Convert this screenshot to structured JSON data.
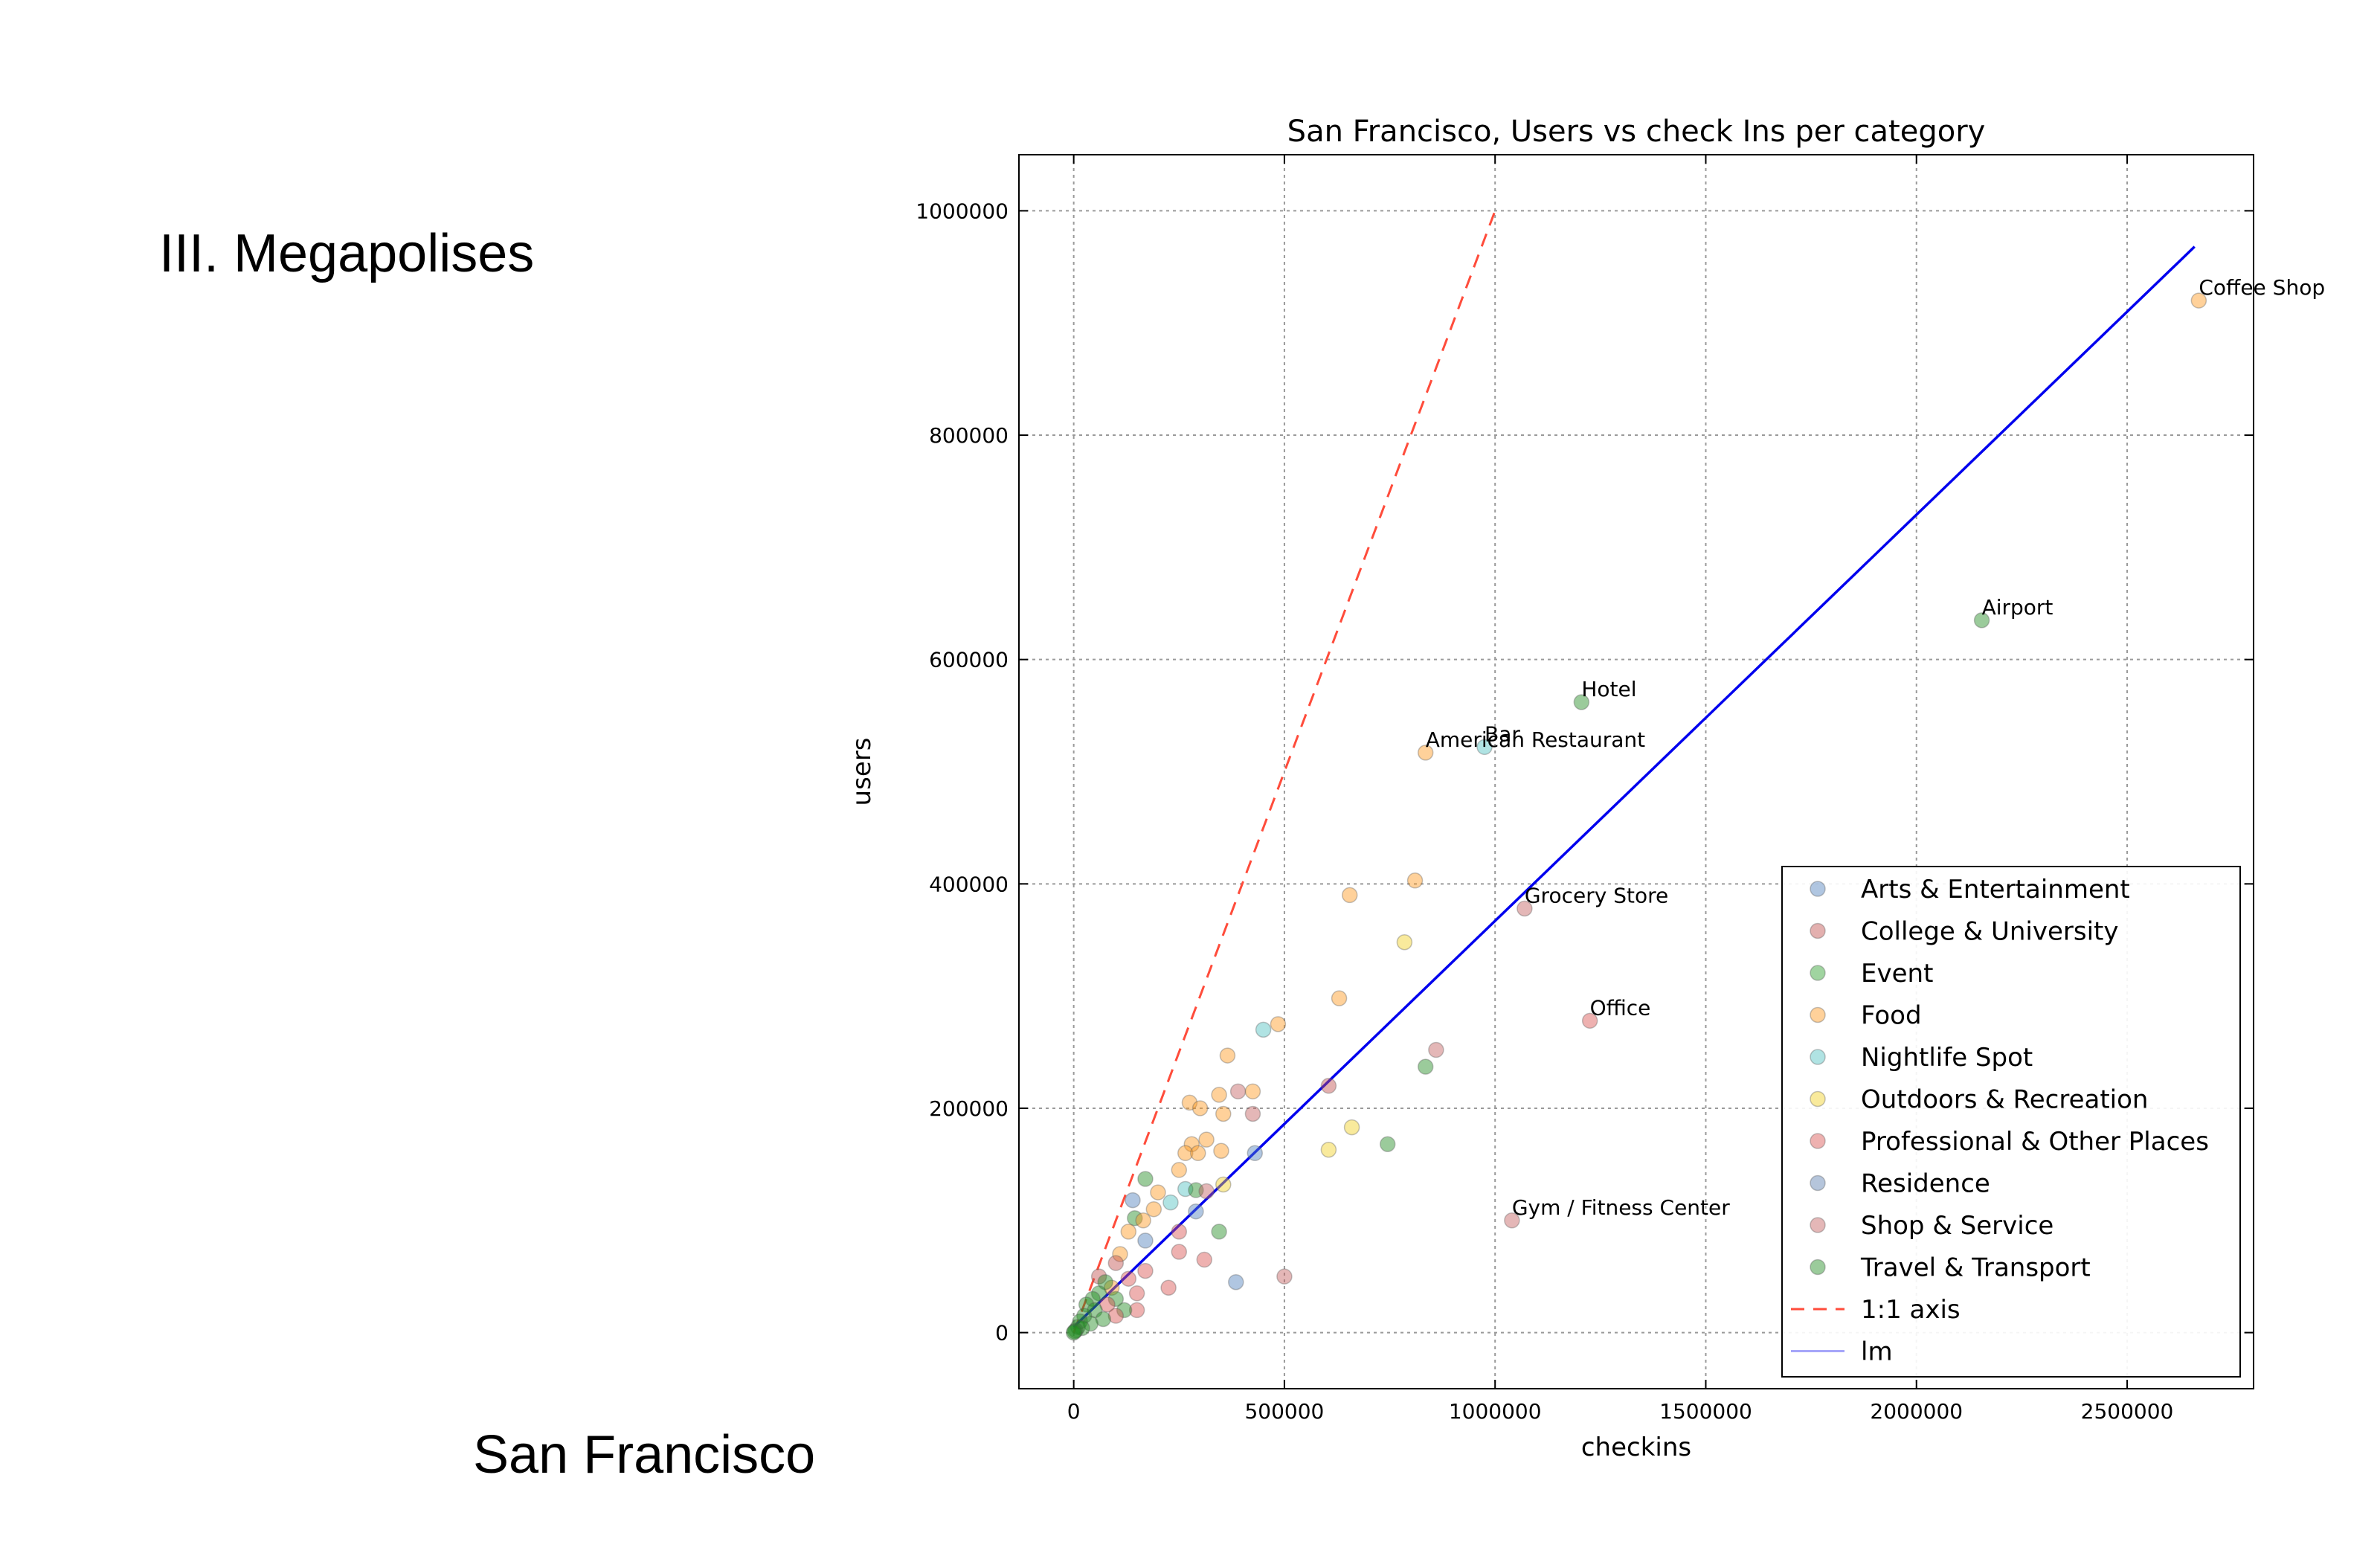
{
  "slide": {
    "heading": "III. Megapolises",
    "caption": "San Francisco"
  },
  "chart_data": {
    "type": "scatter",
    "title": "San Francisco, Users vs check Ins per category",
    "xlabel": "checkins",
    "ylabel": "users",
    "xlim": [
      -130000,
      2800000
    ],
    "ylim": [
      -50000,
      1050000
    ],
    "xticks": [
      0,
      500000,
      1000000,
      1500000,
      2000000,
      2500000
    ],
    "yticks": [
      0,
      200000,
      400000,
      600000,
      800000,
      1000000
    ],
    "grid": true,
    "legend_position": "lower-right",
    "categories": [
      {
        "name": "Arts & Entertainment",
        "color": "#4f81bd"
      },
      {
        "name": "College & University",
        "color": "#c0504d"
      },
      {
        "name": "Event",
        "color": "#2ca02c"
      },
      {
        "name": "Food",
        "color": "#ff9a1f"
      },
      {
        "name": "Nightlife Spot",
        "color": "#4fc1c1"
      },
      {
        "name": "Outdoors & Recreation",
        "color": "#f2d024"
      },
      {
        "name": "Professional & Other Places",
        "color": "#d9534f"
      },
      {
        "name": "Residence",
        "color": "#5a7fb0"
      },
      {
        "name": "Shop & Service",
        "color": "#c46060"
      },
      {
        "name": "Travel & Transport",
        "color": "#228b22"
      }
    ],
    "reference_lines": [
      {
        "name": "1:1 axis",
        "color": "#ff4c3b",
        "style": "dashed",
        "x": [
          0,
          1000000
        ],
        "y": [
          0,
          1000000
        ]
      },
      {
        "name": "lm",
        "color": "#0000ee",
        "style": "solid",
        "x": [
          0,
          2660000
        ],
        "y": [
          5000,
          968000
        ]
      }
    ],
    "annotations": [
      {
        "label": "Coffee Shop",
        "x": 2670000,
        "y": 920000
      },
      {
        "label": "Airport",
        "x": 2155000,
        "y": 635000
      },
      {
        "label": "Hotel",
        "x": 1205000,
        "y": 562000
      },
      {
        "label": "Bar",
        "x": 975000,
        "y": 522000
      },
      {
        "label": "American Restaurant",
        "x": 835000,
        "y": 517000
      },
      {
        "label": "Grocery Store",
        "x": 1070000,
        "y": 378000
      },
      {
        "label": "Office",
        "x": 1225000,
        "y": 278000
      },
      {
        "label": "Gym / Fitness Center",
        "x": 1040000,
        "y": 100000
      }
    ],
    "points": [
      {
        "category": "Food",
        "x": 2670000,
        "y": 920000
      },
      {
        "category": "Travel & Transport",
        "x": 2155000,
        "y": 635000
      },
      {
        "category": "Travel & Transport",
        "x": 1205000,
        "y": 562000
      },
      {
        "category": "Nightlife Spot",
        "x": 975000,
        "y": 522000
      },
      {
        "category": "Food",
        "x": 835000,
        "y": 517000
      },
      {
        "category": "Shop & Service",
        "x": 1070000,
        "y": 378000
      },
      {
        "category": "Professional & Other Places",
        "x": 1225000,
        "y": 278000
      },
      {
        "category": "Shop & Service",
        "x": 1040000,
        "y": 100000
      },
      {
        "category": "Food",
        "x": 810000,
        "y": 403000
      },
      {
        "category": "Food",
        "x": 655000,
        "y": 390000
      },
      {
        "category": "Outdoors & Recreation",
        "x": 785000,
        "y": 348000
      },
      {
        "category": "Food",
        "x": 630000,
        "y": 298000
      },
      {
        "category": "Nightlife Spot",
        "x": 450000,
        "y": 270000
      },
      {
        "category": "Food",
        "x": 485000,
        "y": 275000
      },
      {
        "category": "Shop & Service",
        "x": 860000,
        "y": 252000
      },
      {
        "category": "Travel & Transport",
        "x": 835000,
        "y": 237000
      },
      {
        "category": "Food",
        "x": 365000,
        "y": 247000
      },
      {
        "category": "College & University",
        "x": 605000,
        "y": 220000
      },
      {
        "category": "Shop & Service",
        "x": 390000,
        "y": 215000
      },
      {
        "category": "Food",
        "x": 425000,
        "y": 215000
      },
      {
        "category": "Food",
        "x": 345000,
        "y": 212000
      },
      {
        "category": "Food",
        "x": 275000,
        "y": 205000
      },
      {
        "category": "Shop & Service",
        "x": 425000,
        "y": 195000
      },
      {
        "category": "Outdoors & Recreation",
        "x": 660000,
        "y": 183000
      },
      {
        "category": "Travel & Transport",
        "x": 745000,
        "y": 168000
      },
      {
        "category": "Outdoors & Recreation",
        "x": 605000,
        "y": 163000
      },
      {
        "category": "Arts & Entertainment",
        "x": 430000,
        "y": 160000
      },
      {
        "category": "Food",
        "x": 300000,
        "y": 200000
      },
      {
        "category": "Food",
        "x": 355000,
        "y": 195000
      },
      {
        "category": "Food",
        "x": 315000,
        "y": 172000
      },
      {
        "category": "Food",
        "x": 280000,
        "y": 168000
      },
      {
        "category": "Food",
        "x": 265000,
        "y": 160000
      },
      {
        "category": "Food",
        "x": 350000,
        "y": 162000
      },
      {
        "category": "Food",
        "x": 295000,
        "y": 160000
      },
      {
        "category": "Food",
        "x": 250000,
        "y": 145000
      },
      {
        "category": "Travel & Transport",
        "x": 170000,
        "y": 137000
      },
      {
        "category": "Outdoors & Recreation",
        "x": 355000,
        "y": 132000
      },
      {
        "category": "Nightlife Spot",
        "x": 265000,
        "y": 128000
      },
      {
        "category": "Travel & Transport",
        "x": 290000,
        "y": 127000
      },
      {
        "category": "Shop & Service",
        "x": 315000,
        "y": 126000
      },
      {
        "category": "Food",
        "x": 200000,
        "y": 125000
      },
      {
        "category": "Arts & Entertainment",
        "x": 140000,
        "y": 118000
      },
      {
        "category": "Nightlife Spot",
        "x": 230000,
        "y": 116000
      },
      {
        "category": "Food",
        "x": 190000,
        "y": 110000
      },
      {
        "category": "Arts & Entertainment",
        "x": 290000,
        "y": 108000
      },
      {
        "category": "Travel & Transport",
        "x": 145000,
        "y": 102000
      },
      {
        "category": "Food",
        "x": 165000,
        "y": 100000
      },
      {
        "category": "Professional & Other Places",
        "x": 250000,
        "y": 90000
      },
      {
        "category": "Travel & Transport",
        "x": 345000,
        "y": 90000
      },
      {
        "category": "Food",
        "x": 130000,
        "y": 90000
      },
      {
        "category": "Arts & Entertainment",
        "x": 170000,
        "y": 82000
      },
      {
        "category": "Professional & Other Places",
        "x": 250000,
        "y": 72000
      },
      {
        "category": "Food",
        "x": 110000,
        "y": 70000
      },
      {
        "category": "Professional & Other Places",
        "x": 310000,
        "y": 65000
      },
      {
        "category": "College & University",
        "x": 100000,
        "y": 62000
      },
      {
        "category": "Professional & Other Places",
        "x": 170000,
        "y": 55000
      },
      {
        "category": "Shop & Service",
        "x": 500000,
        "y": 50000
      },
      {
        "category": "Professional & Other Places",
        "x": 130000,
        "y": 48000
      },
      {
        "category": "Arts & Entertainment",
        "x": 385000,
        "y": 45000
      },
      {
        "category": "Professional & Other Places",
        "x": 225000,
        "y": 40000
      },
      {
        "category": "Professional & Other Places",
        "x": 150000,
        "y": 35000
      },
      {
        "category": "Food",
        "x": 90000,
        "y": 40000
      },
      {
        "category": "College & University",
        "x": 60000,
        "y": 50000
      },
      {
        "category": "Travel & Transport",
        "x": 75000,
        "y": 45000
      },
      {
        "category": "Travel & Transport",
        "x": 60000,
        "y": 35000
      },
      {
        "category": "Travel & Transport",
        "x": 100000,
        "y": 30000
      },
      {
        "category": "Travel & Transport",
        "x": 45000,
        "y": 30000
      },
      {
        "category": "Professional & Other Places",
        "x": 80000,
        "y": 25000
      },
      {
        "category": "Travel & Transport",
        "x": 30000,
        "y": 25000
      },
      {
        "category": "Professional & Other Places",
        "x": 150000,
        "y": 20000
      },
      {
        "category": "Travel & Transport",
        "x": 120000,
        "y": 20000
      },
      {
        "category": "Travel & Transport",
        "x": 50000,
        "y": 20000
      },
      {
        "category": "Professional & Other Places",
        "x": 100000,
        "y": 15000
      },
      {
        "category": "Travel & Transport",
        "x": 25000,
        "y": 15000
      },
      {
        "category": "Travel & Transport",
        "x": 70000,
        "y": 12000
      },
      {
        "category": "Travel & Transport",
        "x": 15000,
        "y": 10000
      },
      {
        "category": "Travel & Transport",
        "x": 40000,
        "y": 8000
      },
      {
        "category": "Travel & Transport",
        "x": 10000,
        "y": 5000
      },
      {
        "category": "Travel & Transport",
        "x": 20000,
        "y": 4000
      },
      {
        "category": "Travel & Transport",
        "x": 5000,
        "y": 2000
      },
      {
        "category": "Travel & Transport",
        "x": 2000,
        "y": 1000
      },
      {
        "category": "Travel & Transport",
        "x": 0,
        "y": 0
      }
    ]
  }
}
